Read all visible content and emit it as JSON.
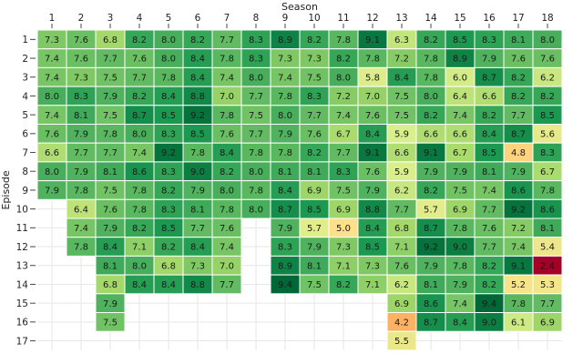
{
  "chart_data": {
    "type": "heatmap",
    "xlabel": "Season",
    "ylabel": "Episode",
    "x": [
      "1",
      "2",
      "3",
      "4",
      "5",
      "6",
      "7",
      "8",
      "9",
      "10",
      "11",
      "12",
      "13",
      "14",
      "15",
      "16",
      "17",
      "18"
    ],
    "y": [
      "1",
      "2",
      "3",
      "4",
      "5",
      "6",
      "7",
      "8",
      "9",
      "10",
      "11",
      "12",
      "13",
      "14",
      "15",
      "16",
      "17"
    ],
    "grid": true,
    "legend": "none",
    "colorscale": [
      "#a50026",
      "#f46d43",
      "#fdae61",
      "#fee08b",
      "#d9ef8b",
      "#a6d96a",
      "#66bd63",
      "#1a9850",
      "#006837"
    ],
    "z": [
      [
        7.3,
        7.6,
        6.8,
        8.2,
        8.0,
        8.2,
        7.7,
        8.3,
        8.9,
        8.2,
        7.8,
        9.1,
        6.3,
        8.2,
        8.5,
        8.3,
        8.1,
        8.0
      ],
      [
        7.4,
        7.6,
        7.7,
        7.6,
        8.0,
        8.4,
        7.8,
        8.3,
        7.3,
        7.3,
        8.2,
        7.8,
        7.2,
        7.8,
        8.9,
        7.9,
        7.6,
        7.6
      ],
      [
        7.4,
        7.3,
        7.5,
        7.7,
        7.8,
        8.4,
        7.4,
        8.0,
        7.4,
        7.5,
        8.0,
        5.8,
        8.4,
        7.8,
        6.0,
        8.7,
        8.2,
        6.2
      ],
      [
        8.0,
        8.3,
        7.9,
        8.2,
        8.4,
        8.8,
        7.0,
        7.7,
        7.8,
        8.3,
        7.2,
        7.0,
        7.5,
        8.0,
        6.4,
        6.6,
        8.2,
        8.2
      ],
      [
        7.4,
        8.1,
        7.5,
        8.7,
        8.5,
        9.2,
        7.8,
        7.5,
        8.0,
        7.7,
        7.4,
        7.6,
        7.5,
        8.2,
        7.4,
        8.2,
        7.7,
        8.5
      ],
      [
        7.6,
        7.9,
        7.8,
        8.0,
        8.3,
        8.5,
        7.6,
        7.7,
        7.9,
        7.6,
        6.7,
        8.4,
        5.9,
        6.6,
        6.6,
        8.4,
        8.7,
        5.6
      ],
      [
        6.6,
        7.7,
        7.7,
        7.4,
        9.2,
        7.8,
        8.4,
        7.8,
        7.8,
        8.2,
        7.7,
        9.1,
        6.6,
        9.1,
        6.7,
        8.5,
        4.8,
        8.3
      ],
      [
        8.0,
        7.9,
        8.1,
        8.6,
        8.3,
        9.0,
        8.2,
        8.0,
        8.1,
        8.1,
        8.3,
        7.6,
        5.9,
        7.9,
        7.9,
        8.1,
        7.9,
        6.7
      ],
      [
        7.9,
        7.8,
        7.5,
        7.8,
        8.2,
        7.9,
        8.0,
        7.8,
        8.4,
        6.9,
        7.5,
        7.9,
        6.2,
        8.2,
        7.5,
        7.4,
        8.6,
        7.8
      ],
      [
        null,
        6.4,
        7.6,
        7.8,
        8.3,
        8.1,
        7.8,
        8.0,
        8.7,
        8.5,
        6.9,
        8.8,
        7.7,
        5.7,
        6.9,
        7.7,
        9.2,
        8.6
      ],
      [
        null,
        7.4,
        7.9,
        8.2,
        8.5,
        7.7,
        7.6,
        null,
        7.9,
        5.7,
        5.0,
        8.4,
        6.8,
        8.7,
        7.8,
        7.6,
        7.2,
        8.1
      ],
      [
        null,
        7.8,
        8.4,
        7.1,
        8.2,
        8.4,
        7.4,
        null,
        8.3,
        7.9,
        7.3,
        8.5,
        7.1,
        9.2,
        9.0,
        7.7,
        7.4,
        5.4
      ],
      [
        null,
        null,
        8.1,
        8.0,
        6.8,
        7.3,
        7.0,
        null,
        8.9,
        8.1,
        7.1,
        7.3,
        7.6,
        7.9,
        7.8,
        8.2,
        9.1,
        2.4
      ],
      [
        null,
        null,
        6.8,
        8.4,
        8.4,
        8.8,
        7.7,
        null,
        9.4,
        7.5,
        8.2,
        7.1,
        6.2,
        8.1,
        7.9,
        8.2,
        5.2,
        5.3
      ],
      [
        null,
        null,
        7.9,
        null,
        null,
        null,
        null,
        null,
        null,
        null,
        null,
        null,
        6.9,
        8.6,
        7.4,
        9.4,
        7.8,
        7.7
      ],
      [
        null,
        null,
        7.5,
        null,
        null,
        null,
        null,
        null,
        null,
        null,
        null,
        null,
        4.2,
        8.7,
        8.4,
        9.0,
        6.1,
        6.9
      ],
      [
        null,
        null,
        null,
        null,
        null,
        null,
        null,
        null,
        null,
        null,
        null,
        null,
        5.5,
        null,
        null,
        null,
        null,
        null
      ]
    ]
  }
}
